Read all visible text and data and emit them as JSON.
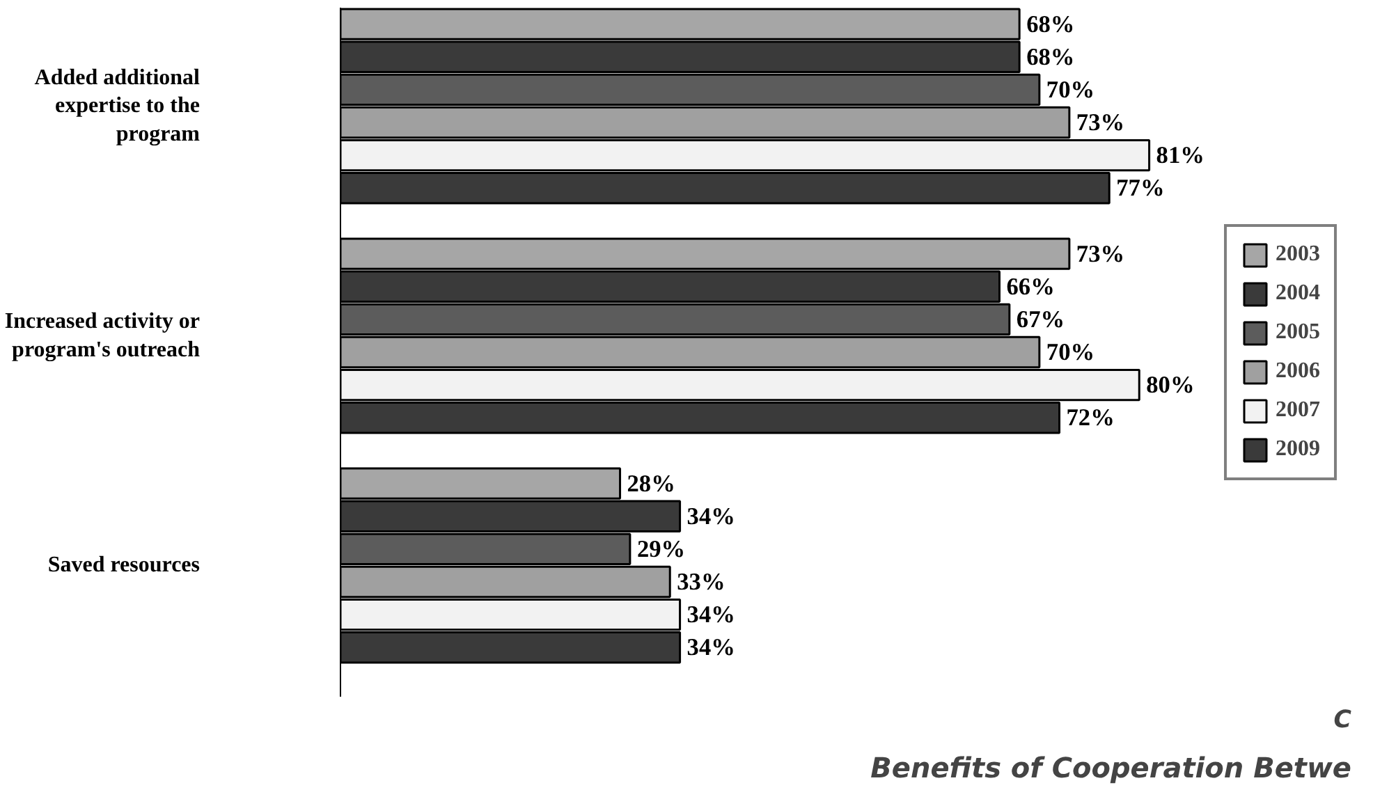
{
  "chart_data": {
    "type": "bar",
    "orientation": "horizontal",
    "title": "Benefits of Cooperation Betwe",
    "annotations": [
      "C"
    ],
    "categories": [
      "Added additional expertise to the program",
      "Increased activity or program's outreach",
      "Saved resources"
    ],
    "series": [
      {
        "name": "2003",
        "color": "#a6a6a6",
        "values": [
          68,
          73,
          28
        ],
        "value_labels": [
          "68%",
          "73%",
          "28%"
        ]
      },
      {
        "name": "2004",
        "color": "#3a3a3a",
        "values": [
          68,
          66,
          34
        ],
        "value_labels": [
          "68%",
          "66%",
          "34%"
        ]
      },
      {
        "name": "2005",
        "color": "#5c5c5c",
        "values": [
          70,
          67,
          29
        ],
        "value_labels": [
          "70%",
          "67%",
          "29%"
        ]
      },
      {
        "name": "2006",
        "color": "#a0a0a0",
        "values": [
          73,
          70,
          33
        ],
        "value_labels": [
          "73%",
          "70%",
          "33%"
        ]
      },
      {
        "name": "2007",
        "color": "#f2f2f2",
        "values": [
          81,
          80,
          34
        ],
        "value_labels": [
          "81%",
          "80%",
          "34%"
        ]
      },
      {
        "name": "2009",
        "color": "#3a3a3a",
        "values": [
          77,
          72,
          34
        ],
        "value_labels": [
          "77%",
          "72%",
          "34%"
        ]
      }
    ],
    "tick_labels": "y",
    "legend": "right"
  }
}
